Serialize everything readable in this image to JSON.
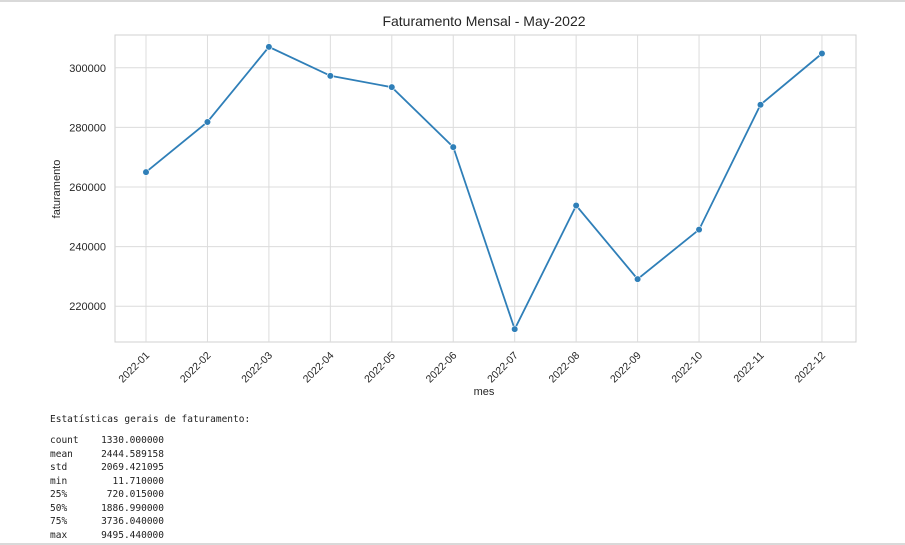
{
  "chart_data": {
    "type": "line",
    "title": "Faturamento Mensal - May-2022",
    "xlabel": "mes",
    "ylabel": "faturamento",
    "categories": [
      "2022-01",
      "2022-02",
      "2022-03",
      "2022-04",
      "2022-05",
      "2022-06",
      "2022-07",
      "2022-08",
      "2022-09",
      "2022-10",
      "2022-11",
      "2022-12"
    ],
    "values": [
      265000,
      281800,
      307000,
      297300,
      293500,
      273400,
      212300,
      253800,
      229100,
      245700,
      287600,
      304800
    ],
    "yticks": [
      220000,
      240000,
      260000,
      280000,
      300000
    ],
    "ylim": [
      208000,
      311000
    ],
    "grid": true,
    "color": "#2f7fb8"
  },
  "stats": {
    "title": "Estatísticas gerais de faturamento:",
    "rows": [
      {
        "name": "count",
        "value": "1330.000000"
      },
      {
        "name": "mean",
        "value": "2444.589158"
      },
      {
        "name": "std",
        "value": "2069.421095"
      },
      {
        "name": "min",
        "value": "11.710000"
      },
      {
        "name": "25%",
        "value": "720.015000"
      },
      {
        "name": "50%",
        "value": "1886.990000"
      },
      {
        "name": "75%",
        "value": "3736.040000"
      },
      {
        "name": "max",
        "value": "9495.440000"
      }
    ]
  }
}
